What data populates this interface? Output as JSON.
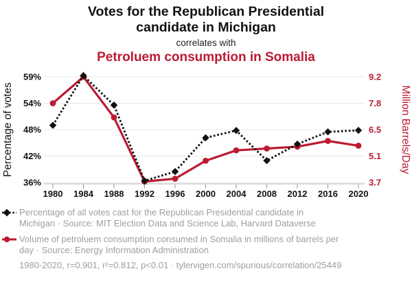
{
  "header": {
    "title_lines": [
      "Votes for the Republican Presidential",
      "candidate in Michigan"
    ],
    "connector": "correlates with",
    "subtitle": "Petroluem consumption in Somalia"
  },
  "chart_data": {
    "type": "line",
    "title": "Votes for the Republican Presidential candidate in Michigan correlates with Petroluem consumption in Somalia",
    "x": [
      1980,
      1984,
      1988,
      1992,
      1996,
      2000,
      2004,
      2008,
      2012,
      2016,
      2020
    ],
    "x_tick_labels": [
      "1980",
      "1984",
      "1988",
      "1992",
      "1996",
      "2000",
      "2004",
      "2008",
      "2012",
      "2016",
      "2020"
    ],
    "series": [
      {
        "name": "Republican votes in Michigan",
        "axis": "left",
        "color": "#111111",
        "line_style": "dashed",
        "marker": "diamond",
        "values": [
          48.99,
          59.23,
          53.57,
          36.38,
          38.48,
          46.15,
          47.81,
          40.96,
          44.71,
          47.5,
          47.84
        ],
        "legend_lines": [
          "Percentage of all votes cast for the Republican Presidential candidate in",
          "Michigan · Source: MIT Election Data and Science Lab, Harvard Dataverse"
        ]
      },
      {
        "name": "Petroleum consumption in Somalia",
        "axis": "right",
        "color": "#bb1b32",
        "line_style": "solid",
        "marker": "circle",
        "values": [
          7.8,
          9.2,
          7.1,
          3.75,
          3.9,
          4.85,
          5.4,
          5.5,
          5.6,
          5.9,
          5.65
        ],
        "legend_lines": [
          "Volume of petroluem consumption consumed in Somalia in millions of barrels per",
          "day · Source: Energy Information Administration"
        ]
      }
    ],
    "left_axis": {
      "label": "Percentage of votes",
      "tick_values": [
        36,
        42,
        48,
        54,
        59
      ],
      "tick_labels": [
        "36%",
        "42%",
        "48%",
        "54%",
        "59%"
      ],
      "range": [
        36,
        59.3
      ],
      "color": "#121212"
    },
    "right_axis": {
      "label": "Million Barrels/Day",
      "tick_values": [
        3.7,
        5.1,
        6.5,
        7.8,
        9.2
      ],
      "tick_labels": [
        "3.7",
        "5.1",
        "6.5",
        "7.8",
        "9.2"
      ],
      "range": [
        3.7,
        9.2
      ],
      "color": "#bb1b32"
    },
    "grid": "horizontal-only",
    "legend_position": "bottom"
  },
  "footer": {
    "text": "1980-2020, r=0.901, r²=0.812, p<0.01 · tylervigen.com/spurious/correlation/25449",
    "year_range": "1980-2020",
    "r": "0.901",
    "r_squared": "0.812",
    "p": "<0.01",
    "url": "tylervigen.com/spurious/correlation/25449"
  }
}
